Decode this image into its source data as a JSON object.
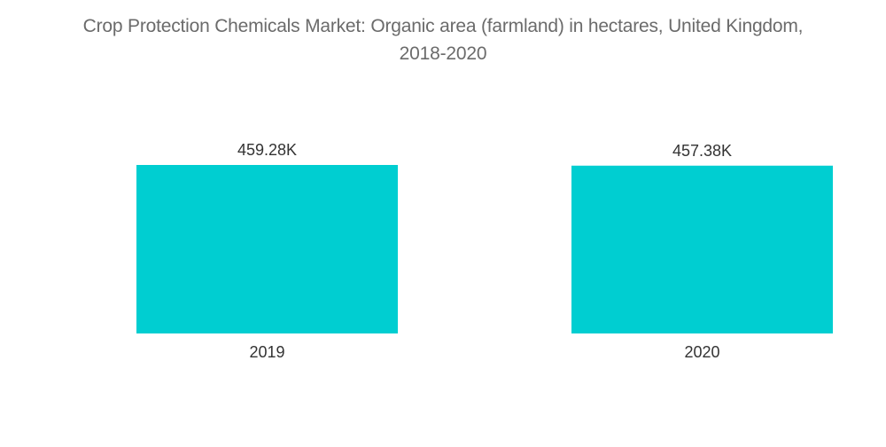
{
  "chart_data": {
    "type": "bar",
    "title_line1": "Crop Protection Chemicals Market: Organic area (farmland) in hectares, United Kingdom,",
    "title_line2": "2018-2020",
    "categories": [
      "2019",
      "2020"
    ],
    "values": [
      459.28,
      457.38
    ],
    "data_labels": [
      "459.28K",
      "457.38K"
    ],
    "unit": "K",
    "color": "#00ced1",
    "xlabel": "",
    "ylabel": "",
    "grid": false,
    "legend": "none"
  }
}
